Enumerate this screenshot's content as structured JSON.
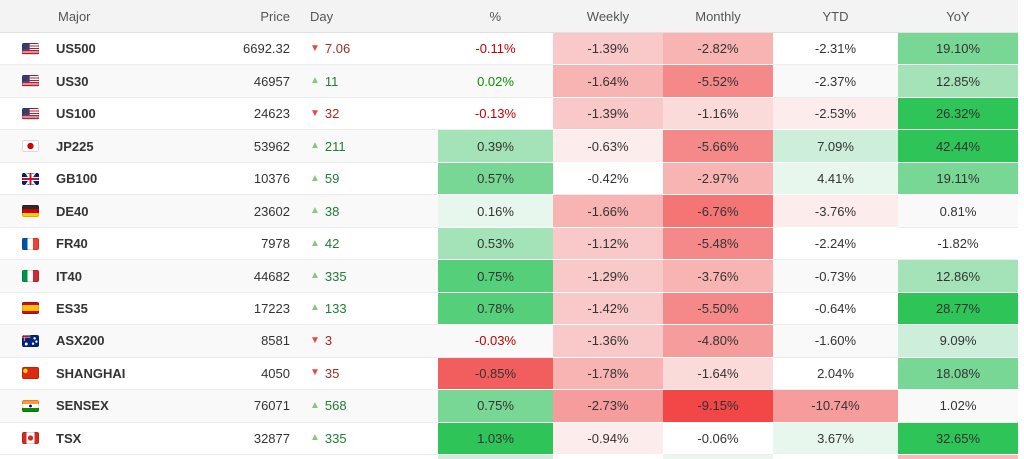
{
  "header": {
    "columns": [
      {
        "label": "Major"
      },
      {
        "label": "Price"
      },
      {
        "label": "Day"
      },
      {
        "label": "%"
      },
      {
        "label": "Weekly"
      },
      {
        "label": "Monthly"
      },
      {
        "label": "YTD"
      },
      {
        "label": "YoY"
      }
    ]
  },
  "icons": {
    "up_arrow": "▲",
    "down_arrow": "▼"
  },
  "palette": {
    "none": "",
    "g1": "#e8f7ed",
    "g2": "#cdeeda",
    "g3": "#a4e3b7",
    "g4": "#79d795",
    "g5": "#55cf79",
    "g6": "#2ec458",
    "r1": "#fdecec",
    "r2": "#fbdada",
    "r3": "#f9c8c8",
    "r4": "#f8b3b3",
    "r5": "#f79c9c",
    "r6": "#f58989",
    "r7": "#f57575",
    "r8": "#f25e5e",
    "r9": "#f34646"
  },
  "text_colors": {
    "pct_up": "#089000",
    "pct_down": "#c00000",
    "cell_text": "#333333"
  },
  "rows": [
    {
      "flag": "us",
      "name": "US500",
      "price": "6692.32",
      "day": {
        "dir": "down",
        "value": "7.06"
      },
      "pct": {
        "text": "-0.11%",
        "bg": "none",
        "tone": "down"
      },
      "weekly": {
        "text": "-1.39%",
        "bg": "r3"
      },
      "monthly": {
        "text": "-2.82%",
        "bg": "r4"
      },
      "ytd": {
        "text": "-2.31%",
        "bg": "none"
      },
      "yoy": {
        "text": "19.10%",
        "bg": "g4"
      }
    },
    {
      "flag": "us",
      "name": "US30",
      "price": "46957",
      "day": {
        "dir": "up",
        "value": "11"
      },
      "pct": {
        "text": "0.02%",
        "bg": "none",
        "tone": "up"
      },
      "weekly": {
        "text": "-1.64%",
        "bg": "r4"
      },
      "monthly": {
        "text": "-5.52%",
        "bg": "r6"
      },
      "ytd": {
        "text": "-2.37%",
        "bg": "none"
      },
      "yoy": {
        "text": "12.85%",
        "bg": "g3"
      }
    },
    {
      "flag": "us",
      "name": "US100",
      "price": "24623",
      "day": {
        "dir": "down",
        "value": "32"
      },
      "pct": {
        "text": "-0.13%",
        "bg": "none",
        "tone": "down"
      },
      "weekly": {
        "text": "-1.39%",
        "bg": "r3"
      },
      "monthly": {
        "text": "-1.16%",
        "bg": "r2"
      },
      "ytd": {
        "text": "-2.53%",
        "bg": "r1"
      },
      "yoy": {
        "text": "26.32%",
        "bg": "g6"
      }
    },
    {
      "flag": "jp",
      "name": "JP225",
      "price": "53962",
      "day": {
        "dir": "up",
        "value": "211"
      },
      "pct": {
        "text": "0.39%",
        "bg": "g3",
        "tone": "up"
      },
      "weekly": {
        "text": "-0.63%",
        "bg": "r1"
      },
      "monthly": {
        "text": "-5.66%",
        "bg": "r6"
      },
      "ytd": {
        "text": "7.09%",
        "bg": "g2"
      },
      "yoy": {
        "text": "42.44%",
        "bg": "g6"
      }
    },
    {
      "flag": "gb",
      "name": "GB100",
      "price": "10376",
      "day": {
        "dir": "up",
        "value": "59"
      },
      "pct": {
        "text": "0.57%",
        "bg": "g4",
        "tone": "up"
      },
      "weekly": {
        "text": "-0.42%",
        "bg": "none",
        "tone": "neutral"
      },
      "monthly": {
        "text": "-2.97%",
        "bg": "r4"
      },
      "ytd": {
        "text": "4.41%",
        "bg": "g1"
      },
      "yoy": {
        "text": "19.11%",
        "bg": "g4"
      }
    },
    {
      "flag": "de",
      "name": "DE40",
      "price": "23602",
      "day": {
        "dir": "up",
        "value": "38"
      },
      "pct": {
        "text": "0.16%",
        "bg": "g1",
        "tone": "up"
      },
      "weekly": {
        "text": "-1.66%",
        "bg": "r4"
      },
      "monthly": {
        "text": "-6.76%",
        "bg": "r7"
      },
      "ytd": {
        "text": "-3.76%",
        "bg": "r1"
      },
      "yoy": {
        "text": "0.81%",
        "bg": "none",
        "tone": "neutral"
      }
    },
    {
      "flag": "fr",
      "name": "FR40",
      "price": "7978",
      "day": {
        "dir": "up",
        "value": "42"
      },
      "pct": {
        "text": "0.53%",
        "bg": "g3",
        "tone": "up"
      },
      "weekly": {
        "text": "-1.12%",
        "bg": "r3"
      },
      "monthly": {
        "text": "-5.48%",
        "bg": "r6"
      },
      "ytd": {
        "text": "-2.24%",
        "bg": "none"
      },
      "yoy": {
        "text": "-1.82%",
        "bg": "none",
        "tone": "neutral"
      }
    },
    {
      "flag": "it",
      "name": "IT40",
      "price": "44682",
      "day": {
        "dir": "up",
        "value": "335"
      },
      "pct": {
        "text": "0.75%",
        "bg": "g5",
        "tone": "up"
      },
      "weekly": {
        "text": "-1.29%",
        "bg": "r3"
      },
      "monthly": {
        "text": "-3.76%",
        "bg": "r4"
      },
      "ytd": {
        "text": "-0.73%",
        "bg": "none"
      },
      "yoy": {
        "text": "12.86%",
        "bg": "g3"
      }
    },
    {
      "flag": "es",
      "name": "ES35",
      "price": "17223",
      "day": {
        "dir": "up",
        "value": "133"
      },
      "pct": {
        "text": "0.78%",
        "bg": "g5",
        "tone": "up"
      },
      "weekly": {
        "text": "-1.42%",
        "bg": "r3"
      },
      "monthly": {
        "text": "-5.50%",
        "bg": "r6"
      },
      "ytd": {
        "text": "-0.64%",
        "bg": "none"
      },
      "yoy": {
        "text": "28.77%",
        "bg": "g6"
      }
    },
    {
      "flag": "au",
      "name": "ASX200",
      "price": "8581",
      "day": {
        "dir": "down",
        "value": "3"
      },
      "pct": {
        "text": "-0.03%",
        "bg": "none",
        "tone": "down"
      },
      "weekly": {
        "text": "-1.36%",
        "bg": "r3"
      },
      "monthly": {
        "text": "-4.80%",
        "bg": "r5"
      },
      "ytd": {
        "text": "-1.60%",
        "bg": "none"
      },
      "yoy": {
        "text": "9.09%",
        "bg": "g2"
      }
    },
    {
      "flag": "cn",
      "name": "SHANGHAI",
      "price": "4050",
      "day": {
        "dir": "down",
        "value": "35"
      },
      "pct": {
        "text": "-0.85%",
        "bg": "r8",
        "tone": "down"
      },
      "weekly": {
        "text": "-1.78%",
        "bg": "r4"
      },
      "monthly": {
        "text": "-1.64%",
        "bg": "r2"
      },
      "ytd": {
        "text": "2.04%",
        "bg": "none"
      },
      "yoy": {
        "text": "18.08%",
        "bg": "g4"
      }
    },
    {
      "flag": "in",
      "name": "SENSEX",
      "price": "76071",
      "day": {
        "dir": "up",
        "value": "568"
      },
      "pct": {
        "text": "0.75%",
        "bg": "g4",
        "tone": "up"
      },
      "weekly": {
        "text": "-2.73%",
        "bg": "r5"
      },
      "monthly": {
        "text": "-9.15%",
        "bg": "r9"
      },
      "ytd": {
        "text": "-10.74%",
        "bg": "r5"
      },
      "yoy": {
        "text": "1.02%",
        "bg": "none",
        "tone": "neutral"
      }
    },
    {
      "flag": "ca",
      "name": "TSX",
      "price": "32877",
      "day": {
        "dir": "up",
        "value": "335"
      },
      "pct": {
        "text": "1.03%",
        "bg": "g6",
        "tone": "up"
      },
      "weekly": {
        "text": "-0.94%",
        "bg": "r1"
      },
      "monthly": {
        "text": "-0.06%",
        "bg": "none",
        "tone": "neutral"
      },
      "ytd": {
        "text": "3.67%",
        "bg": "g1"
      },
      "yoy": {
        "text": "32.65%",
        "bg": "g6"
      }
    }
  ],
  "next_row_peek": {
    "colors": [
      "",
      "",
      "",
      "#cfeeda",
      "#ffffff",
      "#eaf7ef",
      "#ffffff",
      "#f8baba"
    ]
  }
}
